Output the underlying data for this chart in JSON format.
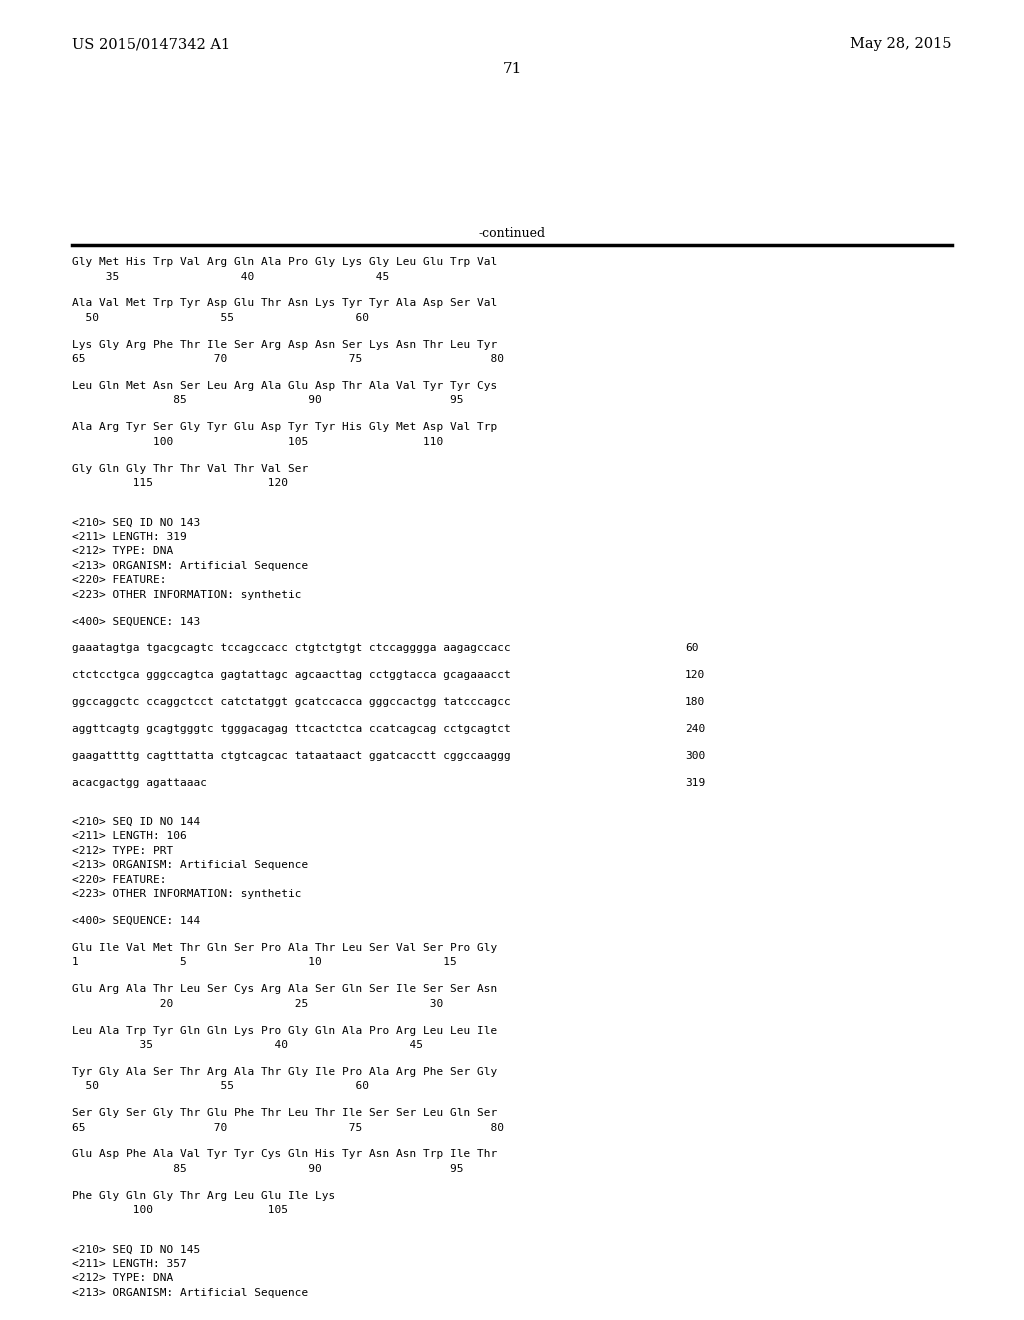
{
  "header_left": "US 2015/0147342 A1",
  "header_right": "May 28, 2015",
  "page_number": "71",
  "continued_label": "-continued",
  "background_color": "#ffffff",
  "text_color": "#000000",
  "content_lines": [
    {
      "type": "seq_line",
      "text": "Gly Met His Trp Val Arg Gln Ala Pro Gly Lys Gly Leu Glu Trp Val"
    },
    {
      "type": "num_line",
      "text": "     35                  40                  45"
    },
    {
      "type": "blank"
    },
    {
      "type": "seq_line",
      "text": "Ala Val Met Trp Tyr Asp Glu Thr Asn Lys Tyr Tyr Ala Asp Ser Val"
    },
    {
      "type": "num_line",
      "text": "  50                  55                  60"
    },
    {
      "type": "blank"
    },
    {
      "type": "seq_line",
      "text": "Lys Gly Arg Phe Thr Ile Ser Arg Asp Asn Ser Lys Asn Thr Leu Tyr"
    },
    {
      "type": "num_line",
      "text": "65                   70                  75                   80"
    },
    {
      "type": "blank"
    },
    {
      "type": "seq_line",
      "text": "Leu Gln Met Asn Ser Leu Arg Ala Glu Asp Thr Ala Val Tyr Tyr Cys"
    },
    {
      "type": "num_line",
      "text": "               85                  90                   95"
    },
    {
      "type": "blank"
    },
    {
      "type": "seq_line",
      "text": "Ala Arg Tyr Ser Gly Tyr Glu Asp Tyr Tyr His Gly Met Asp Val Trp"
    },
    {
      "type": "num_line",
      "text": "            100                 105                 110"
    },
    {
      "type": "blank"
    },
    {
      "type": "seq_line",
      "text": "Gly Gln Gly Thr Thr Val Thr Val Ser"
    },
    {
      "type": "num_line",
      "text": "         115                 120"
    },
    {
      "type": "blank"
    },
    {
      "type": "blank"
    },
    {
      "type": "meta",
      "text": "<210> SEQ ID NO 143"
    },
    {
      "type": "meta",
      "text": "<211> LENGTH: 319"
    },
    {
      "type": "meta",
      "text": "<212> TYPE: DNA"
    },
    {
      "type": "meta",
      "text": "<213> ORGANISM: Artificial Sequence"
    },
    {
      "type": "meta",
      "text": "<220> FEATURE:"
    },
    {
      "type": "meta",
      "text": "<223> OTHER INFORMATION: synthetic"
    },
    {
      "type": "blank"
    },
    {
      "type": "meta",
      "text": "<400> SEQUENCE: 143"
    },
    {
      "type": "blank"
    },
    {
      "type": "dna_line",
      "text": "gaaatagtga tgacgcagtc tccagccacc ctgtctgtgt ctccagggga aagagccacc",
      "num": "60"
    },
    {
      "type": "blank"
    },
    {
      "type": "dna_line",
      "text": "ctctcctgca gggccagtca gagtattagc agcaacttag cctggtacca gcagaaacct",
      "num": "120"
    },
    {
      "type": "blank"
    },
    {
      "type": "dna_line",
      "text": "ggccaggctc ccaggctcct catctatggt gcatccacca gggccactgg tatcccagcc",
      "num": "180"
    },
    {
      "type": "blank"
    },
    {
      "type": "dna_line",
      "text": "aggttcagtg gcagtgggtc tgggacagag ttcactctca ccatcagcag cctgcagtct",
      "num": "240"
    },
    {
      "type": "blank"
    },
    {
      "type": "dna_line",
      "text": "gaagattttg cagtttatta ctgtcagcac tataataact ggatcacctt cggccaaggg",
      "num": "300"
    },
    {
      "type": "blank"
    },
    {
      "type": "dna_line",
      "text": "acacgactgg agattaaac",
      "num": "319"
    },
    {
      "type": "blank"
    },
    {
      "type": "blank"
    },
    {
      "type": "meta",
      "text": "<210> SEQ ID NO 144"
    },
    {
      "type": "meta",
      "text": "<211> LENGTH: 106"
    },
    {
      "type": "meta",
      "text": "<212> TYPE: PRT"
    },
    {
      "type": "meta",
      "text": "<213> ORGANISM: Artificial Sequence"
    },
    {
      "type": "meta",
      "text": "<220> FEATURE:"
    },
    {
      "type": "meta",
      "text": "<223> OTHER INFORMATION: synthetic"
    },
    {
      "type": "blank"
    },
    {
      "type": "meta",
      "text": "<400> SEQUENCE: 144"
    },
    {
      "type": "blank"
    },
    {
      "type": "seq_line",
      "text": "Glu Ile Val Met Thr Gln Ser Pro Ala Thr Leu Ser Val Ser Pro Gly"
    },
    {
      "type": "num_line",
      "text": "1               5                  10                  15"
    },
    {
      "type": "blank"
    },
    {
      "type": "seq_line",
      "text": "Glu Arg Ala Thr Leu Ser Cys Arg Ala Ser Gln Ser Ile Ser Ser Asn"
    },
    {
      "type": "num_line",
      "text": "             20                  25                  30"
    },
    {
      "type": "blank"
    },
    {
      "type": "seq_line",
      "text": "Leu Ala Trp Tyr Gln Gln Lys Pro Gly Gln Ala Pro Arg Leu Leu Ile"
    },
    {
      "type": "num_line",
      "text": "          35                  40                  45"
    },
    {
      "type": "blank"
    },
    {
      "type": "seq_line",
      "text": "Tyr Gly Ala Ser Thr Arg Ala Thr Gly Ile Pro Ala Arg Phe Ser Gly"
    },
    {
      "type": "num_line",
      "text": "  50                  55                  60"
    },
    {
      "type": "blank"
    },
    {
      "type": "seq_line",
      "text": "Ser Gly Ser Gly Thr Glu Phe Thr Leu Thr Ile Ser Ser Leu Gln Ser"
    },
    {
      "type": "num_line",
      "text": "65                   70                  75                   80"
    },
    {
      "type": "blank"
    },
    {
      "type": "seq_line",
      "text": "Glu Asp Phe Ala Val Tyr Tyr Cys Gln His Tyr Asn Asn Trp Ile Thr"
    },
    {
      "type": "num_line",
      "text": "               85                  90                   95"
    },
    {
      "type": "blank"
    },
    {
      "type": "seq_line",
      "text": "Phe Gly Gln Gly Thr Arg Leu Glu Ile Lys"
    },
    {
      "type": "num_line",
      "text": "         100                 105"
    },
    {
      "type": "blank"
    },
    {
      "type": "blank"
    },
    {
      "type": "meta",
      "text": "<210> SEQ ID NO 145"
    },
    {
      "type": "meta",
      "text": "<211> LENGTH: 357"
    },
    {
      "type": "meta",
      "text": "<212> TYPE: DNA"
    },
    {
      "type": "meta",
      "text": "<213> ORGANISM: Artificial Sequence"
    }
  ]
}
